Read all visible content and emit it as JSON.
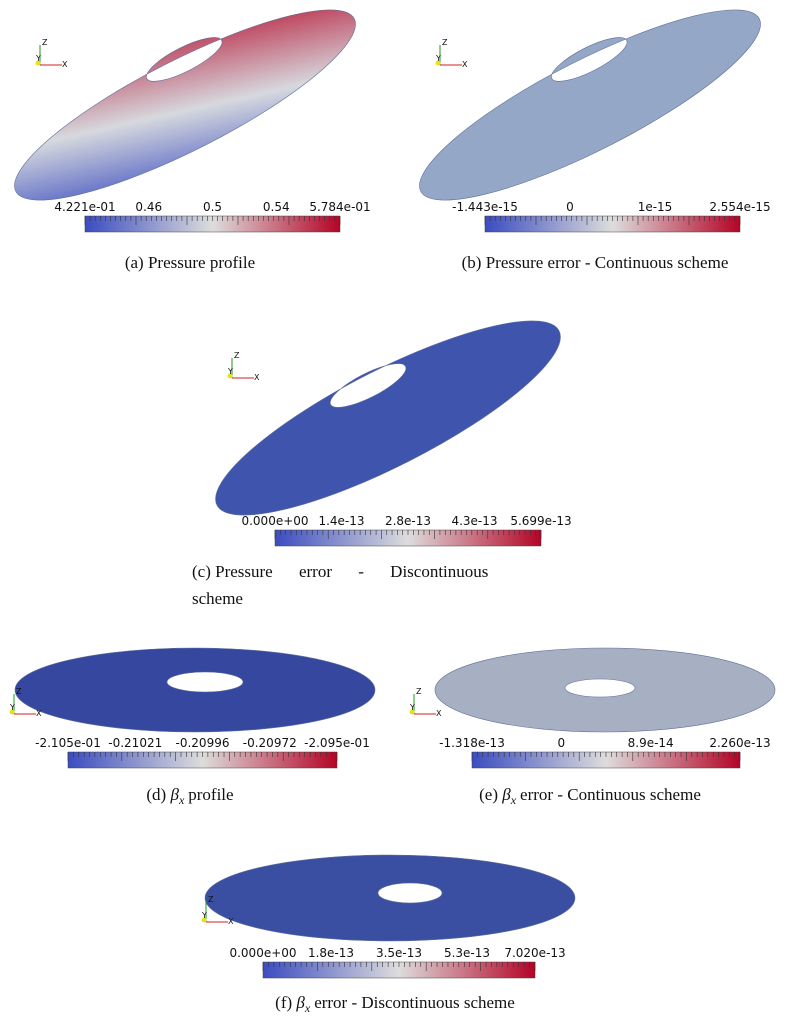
{
  "panels": [
    {
      "caption": {
        "label": "(a)",
        "text": "Pressure profile"
      },
      "axes": [
        "Z",
        "Y",
        "X"
      ],
      "colorbar": [
        "4.221e-01",
        "0.46",
        "0.5",
        "0.54",
        "5.784e-01"
      ]
    },
    {
      "caption": {
        "label": "(b)",
        "text": "Pressure error - Continuous scheme"
      },
      "axes": [
        "Z",
        "Y",
        "X"
      ],
      "colorbar": [
        "-1.443e-15",
        "0",
        "1e-15",
        "2.554e-15"
      ]
    },
    {
      "caption": {
        "label": "(c)",
        "text": "Pressure error - Discontinuous",
        "text2": "scheme"
      },
      "axes": [
        "Z",
        "Y",
        "X"
      ],
      "colorbar": [
        "0.000e+00",
        "1.4e-13",
        "2.8e-13",
        "4.3e-13",
        "5.699e-13"
      ]
    },
    {
      "caption": {
        "label": "(d)",
        "symbol": "β",
        "sub": "x",
        "text": "profile"
      },
      "axes": [
        "Z",
        "Y",
        "X"
      ],
      "colorbar": [
        "-2.105e-01",
        "-0.21021",
        "-0.20996",
        "-0.20972",
        "-2.095e-01"
      ]
    },
    {
      "caption": {
        "label": "(e)",
        "symbol": "β",
        "sub": "x",
        "text": "error - Continuous scheme"
      },
      "axes": [
        "Z",
        "Y",
        "X"
      ],
      "colorbar": [
        "-1.318e-13",
        "0",
        "8.9e-14",
        "2.260e-13"
      ]
    },
    {
      "caption": {
        "label": "(f)",
        "symbol": "β",
        "sub": "x",
        "text": "error - Discontinuous scheme"
      },
      "axes": [
        "Z",
        "Y",
        "X"
      ],
      "colorbar": [
        "0.000e+00",
        "1.8e-13",
        "3.5e-13",
        "5.3e-13",
        "7.020e-13"
      ]
    }
  ]
}
